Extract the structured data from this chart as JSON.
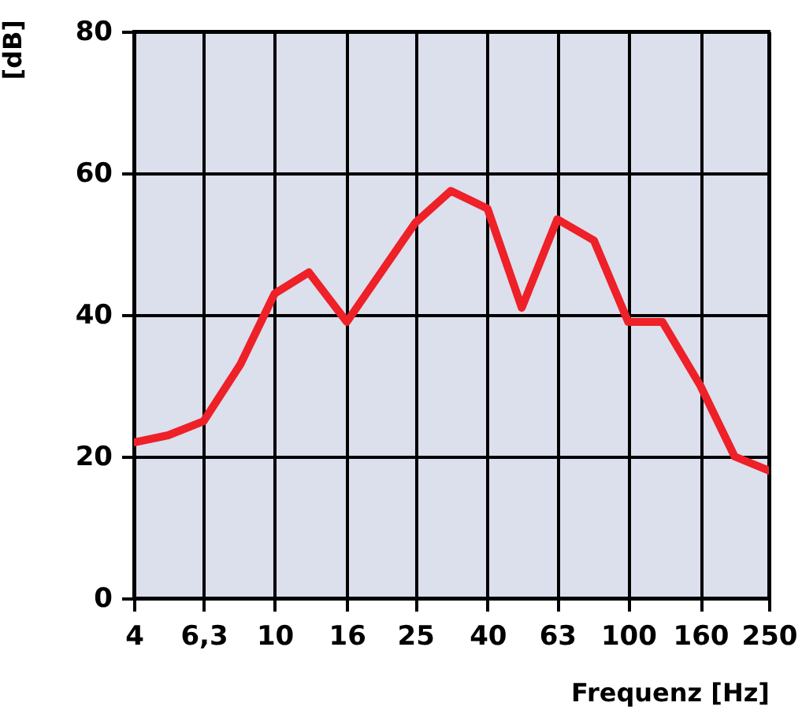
{
  "chart_data": {
    "type": "line",
    "ylabel": "[dB]",
    "xlabel": "Frequenz [Hz]",
    "log": "x",
    "x": [
      4,
      5,
      6.3,
      8,
      10,
      12.5,
      16,
      20,
      25,
      31.5,
      40,
      50,
      63,
      80,
      100,
      125,
      160,
      200,
      250
    ],
    "series": [
      {
        "color": "#ee2028",
        "values": [
          22,
          23,
          25,
          33,
          43,
          46,
          39,
          46,
          53,
          57.5,
          55,
          41,
          53.5,
          50.5,
          39,
          39,
          30,
          20,
          18
        ]
      }
    ],
    "xlim": [
      4,
      250
    ],
    "xticks": [
      4,
      {
        "value": 6.3,
        "label": "6,3"
      },
      10,
      16,
      25,
      40,
      63,
      100,
      160,
      250
    ],
    "ylim": [
      0,
      80
    ],
    "yticks": [
      0,
      20,
      40,
      60,
      80
    ],
    "grid": true,
    "line_style": "solid"
  }
}
